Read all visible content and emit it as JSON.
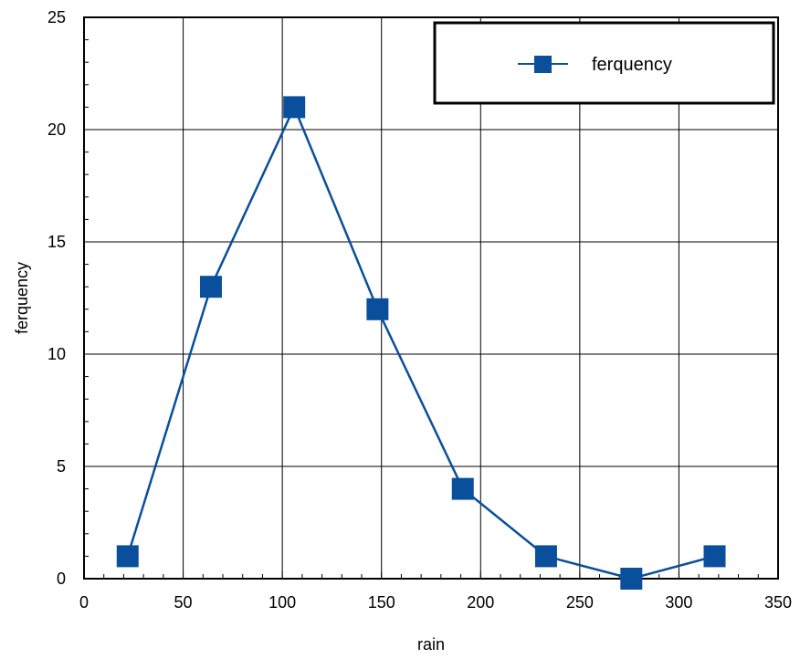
{
  "chart_data": {
    "type": "line",
    "xlabel": "rain",
    "ylabel": "ferquency",
    "xlim": [
      0,
      350
    ],
    "ylim": [
      0,
      25
    ],
    "xticks": [
      0,
      50,
      100,
      150,
      200,
      250,
      300,
      350
    ],
    "yticks": [
      0,
      5,
      10,
      15,
      20,
      25
    ],
    "grid": true,
    "legend_position": "top-right",
    "series": [
      {
        "name": "ferquency",
        "color": "#0a4f9c",
        "marker": "square",
        "x": [
          22,
          64,
          106,
          148,
          191,
          233,
          276,
          318
        ],
        "y": [
          1,
          13,
          21,
          12,
          4,
          1,
          0,
          1
        ]
      }
    ]
  }
}
